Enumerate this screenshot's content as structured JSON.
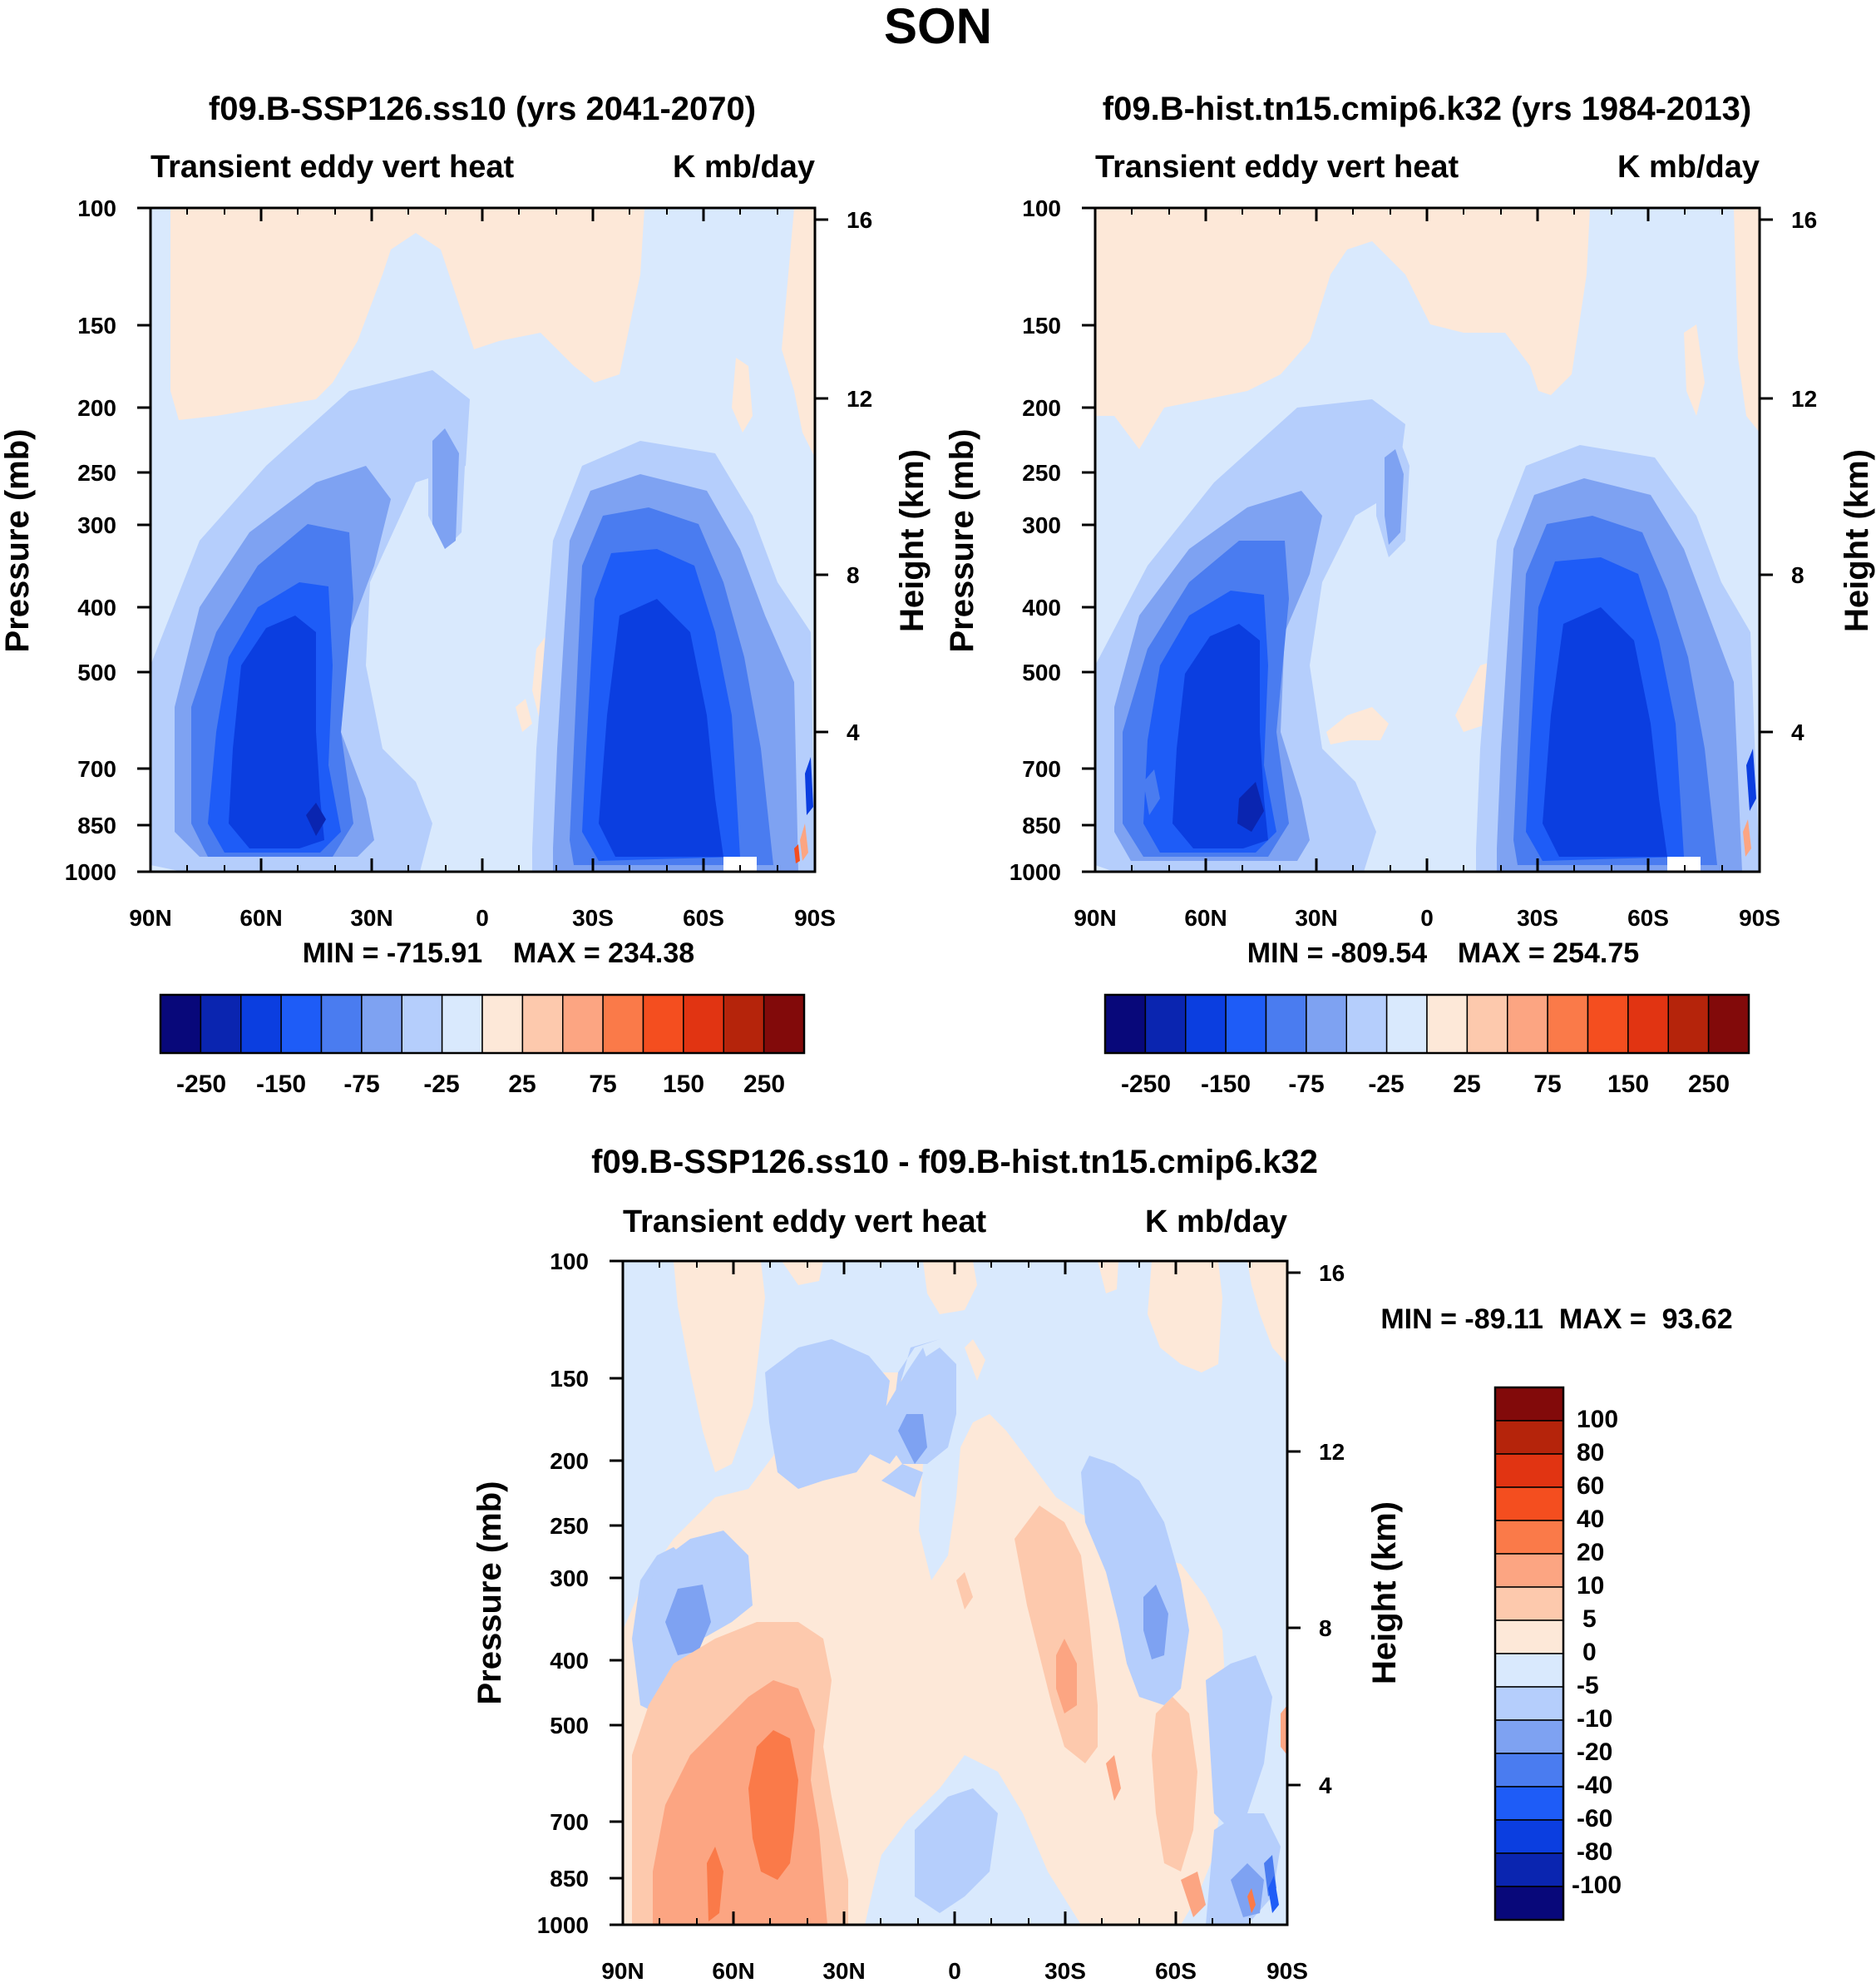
{
  "figure_title": "SON",
  "colors": {
    "abs_levels": [
      "#08087a",
      "#0a25b0",
      "#0b3ee0",
      "#1e5cf7",
      "#4a7cf0",
      "#7ea2f2",
      "#b5cefc",
      "#d9e9fd",
      "#fde8d8",
      "#fdc9ad",
      "#fca582",
      "#fa7a49",
      "#f44e1f",
      "#e13412",
      "#b5240b",
      "#820a0a"
    ],
    "diff_levels": [
      "#08087a",
      "#0a25b0",
      "#0b3ee0",
      "#1e5cf7",
      "#4a7cf0",
      "#7ea2f2",
      "#b5cefc",
      "#d9e9fd",
      "#fde8d8",
      "#fdc9ad",
      "#fca582",
      "#fa7a49",
      "#f44e1f",
      "#e13412",
      "#b5240b",
      "#820a0a"
    ]
  },
  "chart_data": [
    {
      "type": "heatmap",
      "title": "f09.B-SSP126.ss10 (yrs 2041-2070)",
      "left_string": "Transient eddy vert heat",
      "right_string": "K mb/day",
      "ylabel": "Pressure (mb)",
      "ylabel_right": "Height (km)",
      "x_ticks": [
        "90N",
        "60N",
        "30N",
        "0",
        "30S",
        "60S",
        "90S"
      ],
      "y_ticks": [
        "100",
        "150",
        "200",
        "250",
        "300",
        "400",
        "500",
        "700",
        "850",
        "1000"
      ],
      "y_ticks_right": [
        "16",
        "12",
        "8",
        "4"
      ],
      "min": -715.91,
      "max": 234.38,
      "min_label": "MIN = -715.91",
      "max_label": "MAX = 234.38",
      "colorbar_orientation": "horizontal",
      "colorbar_labels": [
        "-250",
        "-150",
        "-75",
        "-25",
        "25",
        "75",
        "150",
        "250"
      ],
      "contour_levels": [
        -300,
        -250,
        -200,
        -150,
        -100,
        -75,
        -50,
        -25,
        0,
        25,
        50,
        75,
        100,
        150,
        200,
        250,
        300
      ]
    },
    {
      "type": "heatmap",
      "title": "f09.B-hist.tn15.cmip6.k32 (yrs 1984-2013)",
      "left_string": "Transient eddy vert heat",
      "right_string": "K mb/day",
      "ylabel": "Pressure (mb)",
      "ylabel_right": "Height (km)",
      "x_ticks": [
        "90N",
        "60N",
        "30N",
        "0",
        "30S",
        "60S",
        "90S"
      ],
      "y_ticks": [
        "100",
        "150",
        "200",
        "250",
        "300",
        "400",
        "500",
        "700",
        "850",
        "1000"
      ],
      "y_ticks_right": [
        "16",
        "12",
        "8",
        "4"
      ],
      "min": -809.54,
      "max": 254.75,
      "min_label": "MIN = -809.54",
      "max_label": "MAX = 254.75",
      "colorbar_orientation": "horizontal",
      "colorbar_labels": [
        "-250",
        "-150",
        "-75",
        "-25",
        "25",
        "75",
        "150",
        "250"
      ],
      "contour_levels": [
        -300,
        -250,
        -200,
        -150,
        -100,
        -75,
        -50,
        -25,
        0,
        25,
        50,
        75,
        100,
        150,
        200,
        250,
        300
      ]
    },
    {
      "type": "heatmap",
      "title": "f09.B-SSP126.ss10 - f09.B-hist.tn15.cmip6.k32",
      "left_string": "Transient eddy vert heat",
      "right_string": "K mb/day",
      "ylabel": "Pressure (mb)",
      "ylabel_right": "Height (km)",
      "x_ticks": [
        "90N",
        "60N",
        "30N",
        "0",
        "30S",
        "60S",
        "90S"
      ],
      "y_ticks": [
        "100",
        "150",
        "200",
        "250",
        "300",
        "400",
        "500",
        "700",
        "850",
        "1000"
      ],
      "y_ticks_right": [
        "16",
        "12",
        "8",
        "4"
      ],
      "min": -89.11,
      "max": 93.62,
      "minmax_label": "MIN = -89.11  MAX =  93.62",
      "colorbar_orientation": "vertical",
      "colorbar_labels": [
        "100",
        "80",
        "60",
        "40",
        "20",
        "10",
        "5",
        "0",
        "-5",
        "-10",
        "-20",
        "-40",
        "-60",
        "-80",
        "-100"
      ],
      "contour_levels": [
        -120,
        -100,
        -80,
        -60,
        -40,
        -20,
        -10,
        -5,
        0,
        5,
        10,
        20,
        40,
        60,
        80,
        100,
        120
      ]
    }
  ]
}
